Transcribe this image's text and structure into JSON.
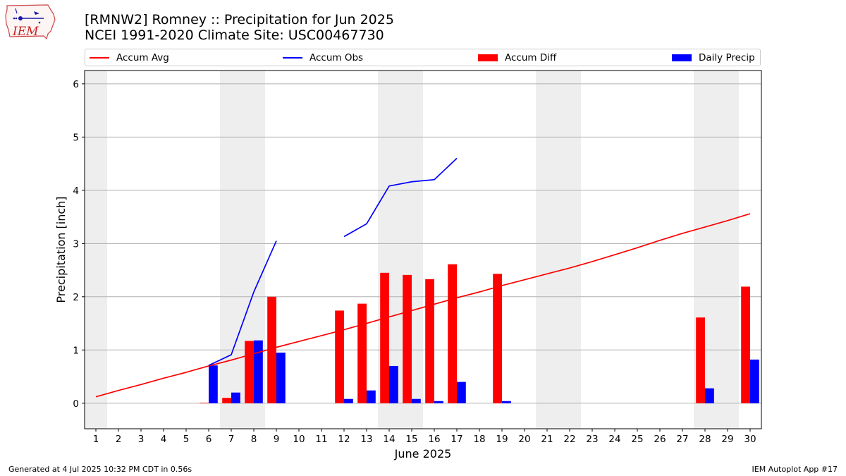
{
  "title": "[RMNW2] Romney :: Precipitation for Jun 2025",
  "subtitle": "NCEI 1991-2020 Climate Site: USC00467730",
  "logo_text": "IEM",
  "footer_left": "Generated at 4 Jul 2025 10:32 PM CDT in 0.56s",
  "footer_right": "IEM Autoplot App #17",
  "legend": [
    {
      "label": "Accum Avg",
      "kind": "line",
      "color": "#ff0000"
    },
    {
      "label": "Accum Obs",
      "kind": "line",
      "color": "#0000ff"
    },
    {
      "label": "Accum Diff",
      "kind": "bar",
      "color": "#ff0000"
    },
    {
      "label": "Daily Precip",
      "kind": "bar",
      "color": "#0000ff"
    }
  ],
  "chart_data": {
    "type": "bar",
    "xlabel": "June 2025",
    "ylabel": "Precipitation [inch]",
    "xlim": [
      0.5,
      30.5
    ],
    "ylim": [
      -0.48,
      6.25
    ],
    "yticks": [
      0,
      1,
      2,
      3,
      4,
      5,
      6
    ],
    "x": [
      1,
      2,
      3,
      4,
      5,
      6,
      7,
      8,
      9,
      10,
      11,
      12,
      13,
      14,
      15,
      16,
      17,
      18,
      19,
      20,
      21,
      22,
      23,
      24,
      25,
      26,
      27,
      28,
      29,
      30
    ],
    "weekend_days": [
      1,
      7,
      8,
      14,
      15,
      21,
      22,
      28,
      29
    ],
    "grid": "horizontal",
    "series": [
      {
        "name": "Accum Avg",
        "type": "line",
        "color": "#ff0000",
        "values": [
          0.12,
          0.24,
          0.35,
          0.47,
          0.58,
          0.7,
          0.81,
          0.93,
          1.05,
          1.16,
          1.27,
          1.38,
          1.5,
          1.62,
          1.74,
          1.86,
          1.98,
          2.09,
          2.21,
          2.32,
          2.43,
          2.54,
          2.66,
          2.79,
          2.92,
          3.06,
          3.19,
          3.31,
          3.43,
          3.56
        ]
      },
      {
        "name": "Accum Obs",
        "type": "line",
        "color": "#0000ff",
        "values": [
          null,
          null,
          null,
          null,
          null,
          0.71,
          0.91,
          2.09,
          3.05,
          null,
          null,
          3.13,
          3.37,
          4.08,
          4.16,
          4.2,
          4.6,
          null,
          null,
          null,
          null,
          null,
          null,
          null,
          null,
          null,
          null,
          null,
          null,
          null
        ]
      },
      {
        "name": "Accum Diff",
        "type": "bar",
        "color": "#ff0000",
        "values": [
          0,
          0,
          0,
          0,
          0,
          0.01,
          0.1,
          1.17,
          2.0,
          0,
          0,
          1.74,
          1.87,
          2.45,
          2.41,
          2.33,
          2.61,
          0,
          2.43,
          0,
          0,
          0,
          0,
          0,
          0,
          0,
          0,
          1.61,
          0,
          2.19
        ]
      },
      {
        "name": "Daily Precip",
        "type": "bar",
        "color": "#0000ff",
        "values": [
          0,
          0,
          0,
          0,
          0,
          0.71,
          0.2,
          1.18,
          0.95,
          0,
          0,
          0.08,
          0.24,
          0.7,
          0.08,
          0.04,
          0.4,
          0,
          0.04,
          0,
          0,
          0,
          0,
          0,
          0,
          0,
          0,
          0.28,
          0,
          0.82
        ]
      }
    ]
  }
}
